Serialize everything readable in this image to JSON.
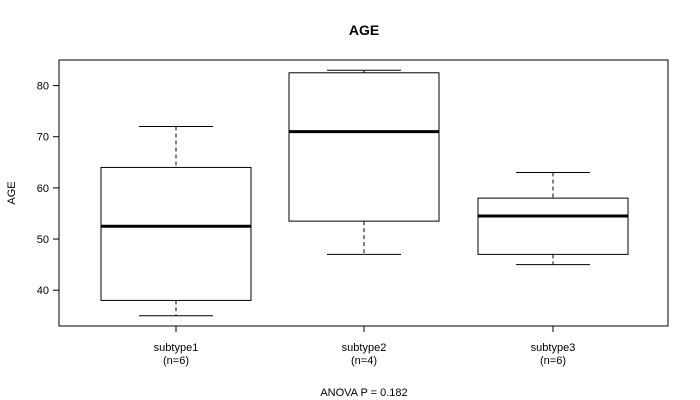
{
  "chart_data": {
    "type": "boxplot",
    "title": "AGE",
    "ylabel": "AGE",
    "xlabel": "",
    "ylim": [
      33.0,
      85.0
    ],
    "yticks": [
      40,
      50,
      60,
      70,
      80
    ],
    "footer": "ANOVA P = 0.182",
    "grid": false,
    "groups": [
      {
        "label": "subtype1",
        "n_label": "(n=6)",
        "whisker_low": 35.0,
        "q1": 38.0,
        "median": 52.5,
        "q3": 64.0,
        "whisker_high": 72.0
      },
      {
        "label": "subtype2",
        "n_label": "(n=4)",
        "whisker_low": 47.0,
        "q1": 53.5,
        "median": 71.0,
        "q3": 82.5,
        "whisker_high": 83.0
      },
      {
        "label": "subtype3",
        "n_label": "(n=6)",
        "whisker_low": 45.0,
        "q1": 47.0,
        "median": 54.5,
        "q3": 58.0,
        "whisker_high": 63.0
      }
    ]
  }
}
